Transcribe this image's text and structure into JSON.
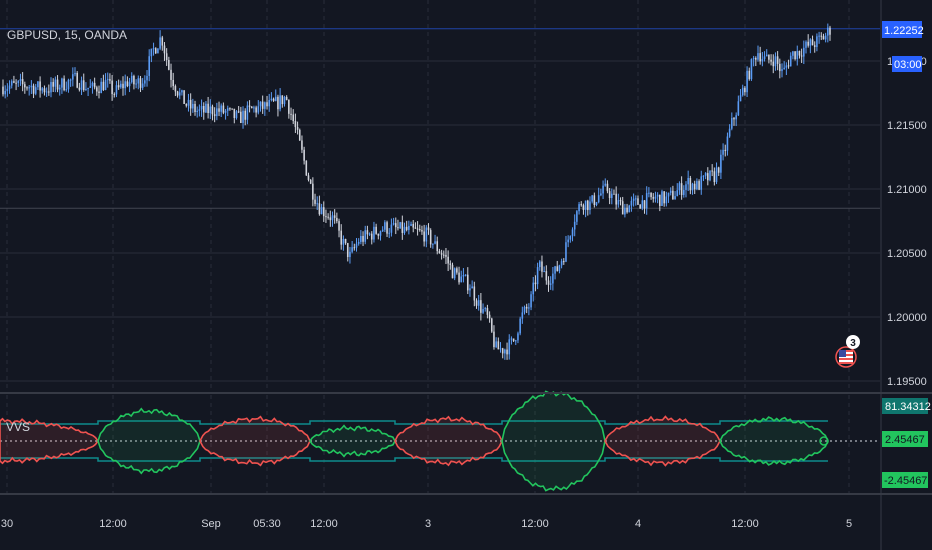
{
  "symbol_title": "GBPUSD, 15, OANDA",
  "indicator_label": "VVS",
  "colors": {
    "background": "#131722",
    "grid": "#2a2e39",
    "candle_up": "#5b9cf6",
    "candle_down": "#d1d4dc",
    "band_red": "#ef5350",
    "band_green": "#26a69a",
    "band_green_bright": "#22c55e",
    "channel_line": "#0e8c8c",
    "price_tag": "#2962ff"
  },
  "price_axis": {
    "ticks": [
      "1.22000",
      "1.21500",
      "1.21000",
      "1.20500",
      "1.20000",
      "1.19500"
    ],
    "current_price_label": "1.22252",
    "countdown_label": "03:00"
  },
  "indicator_axis": {
    "value_labels": [
      "81.34312",
      "2.45467",
      "-2.45467"
    ]
  },
  "time_axis": {
    "ticks": [
      "30",
      "12:00",
      "Sep",
      "05:30",
      "12:00",
      "3",
      "12:00",
      "4",
      "12:00",
      "5"
    ]
  },
  "event_badge": {
    "count": "3",
    "flag_icon": "us-flag-icon"
  },
  "chart_data": {
    "type": "candlestick",
    "symbol": "GBPUSD",
    "timeframe": "15",
    "source": "OANDA",
    "ylim": [
      1.1945,
      1.225
    ],
    "x_ticks": [
      "30",
      "12:00",
      "Sep",
      "05:30",
      "12:00",
      "3",
      "12:00",
      "4",
      "12:00",
      "5"
    ],
    "price_path": [
      [
        0,
        1.218
      ],
      [
        5,
        1.2181
      ],
      [
        10,
        1.2178
      ],
      [
        14,
        1.2182
      ],
      [
        17,
        1.2186
      ],
      [
        19,
        1.218
      ],
      [
        21,
        1.2178
      ],
      [
        24,
        1.2183
      ],
      [
        26,
        1.2175
      ],
      [
        29,
        1.2184
      ],
      [
        31,
        1.2182
      ],
      [
        33,
        1.2187
      ],
      [
        35,
        1.2208
      ],
      [
        37,
        1.2219
      ],
      [
        39,
        1.219
      ],
      [
        41,
        1.2175
      ],
      [
        43,
        1.2165
      ],
      [
        46,
        1.216
      ],
      [
        49,
        1.2162
      ],
      [
        52,
        1.216
      ],
      [
        55,
        1.2155
      ],
      [
        58,
        1.2162
      ],
      [
        61,
        1.2164
      ],
      [
        64,
        1.2167
      ],
      [
        66,
        1.2172
      ],
      [
        68,
        1.215
      ],
      [
        70,
        1.2125
      ],
      [
        72,
        1.21
      ],
      [
        74,
        1.2085
      ],
      [
        77,
        1.2077
      ],
      [
        79,
        1.206
      ],
      [
        81,
        1.2047
      ],
      [
        83,
        1.206
      ],
      [
        86,
        1.2065
      ],
      [
        89,
        1.207
      ],
      [
        93,
        1.2068
      ],
      [
        96,
        1.2067
      ],
      [
        99,
        1.2064
      ],
      [
        101,
        1.2055
      ],
      [
        103,
        1.2048
      ],
      [
        105,
        1.2035
      ],
      [
        107,
        1.203
      ],
      [
        109,
        1.2025
      ],
      [
        111,
        1.201
      ],
      [
        113,
        1.2
      ],
      [
        115,
        1.1975
      ],
      [
        117,
        1.1975
      ],
      [
        119,
        1.198
      ],
      [
        121,
        1.2
      ],
      [
        123,
        1.201
      ],
      [
        125,
        1.204
      ],
      [
        127,
        1.203
      ],
      [
        129,
        1.2035
      ],
      [
        131,
        1.205
      ],
      [
        133,
        1.2075
      ],
      [
        135,
        1.209
      ],
      [
        137,
        1.2088
      ],
      [
        139,
        1.2095
      ],
      [
        141,
        1.21
      ],
      [
        143,
        1.209
      ],
      [
        145,
        1.2085
      ],
      [
        147,
        1.2088
      ],
      [
        149,
        1.209
      ],
      [
        152,
        1.2093
      ],
      [
        155,
        1.2092
      ],
      [
        158,
        1.21
      ],
      [
        160,
        1.2105
      ],
      [
        162,
        1.2102
      ],
      [
        164,
        1.2108
      ],
      [
        166,
        1.211
      ],
      [
        168,
        1.2125
      ],
      [
        170,
        1.215
      ],
      [
        172,
        1.217
      ],
      [
        174,
        1.219
      ],
      [
        176,
        1.2208
      ],
      [
        178,
        1.22
      ],
      [
        180,
        1.2202
      ],
      [
        182,
        1.219
      ],
      [
        184,
        1.2205
      ],
      [
        186,
        1.2208
      ],
      [
        188,
        1.2212
      ],
      [
        190,
        1.2215
      ],
      [
        192,
        1.222
      ],
      [
        193,
        1.2225
      ]
    ],
    "last_price": 1.22252,
    "indicator": {
      "name": "VVS",
      "upper_value": 81.34312,
      "center_upper": 2.45467,
      "center_lower": -2.45467,
      "regimes": [
        "red",
        "green",
        "red",
        "green",
        "red",
        "green",
        "red",
        "green"
      ]
    }
  }
}
